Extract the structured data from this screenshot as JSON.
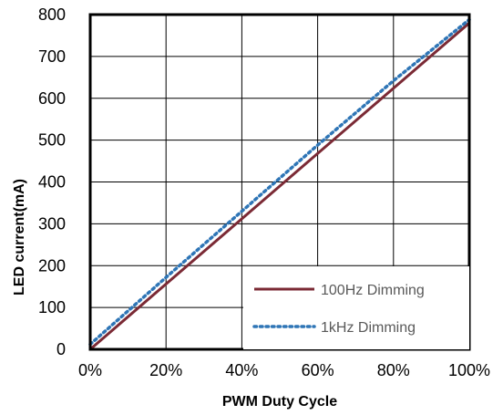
{
  "chart_data": {
    "type": "line",
    "title": "",
    "xlabel": "PWM Duty Cycle",
    "ylabel": "LED current(mA)",
    "xlim": [
      0,
      100
    ],
    "ylim": [
      0,
      800
    ],
    "x_ticks": [
      "0%",
      "20%",
      "40%",
      "60%",
      "80%",
      "100%"
    ],
    "x_tick_values": [
      0,
      20,
      40,
      60,
      80,
      100
    ],
    "y_ticks": [
      "0",
      "100",
      "200",
      "300",
      "400",
      "500",
      "600",
      "700",
      "800"
    ],
    "y_tick_values": [
      0,
      100,
      200,
      300,
      400,
      500,
      600,
      700,
      800
    ],
    "grid": true,
    "legend_position": "bottom-right",
    "series": [
      {
        "name": "100Hz Dimming",
        "style": "solid",
        "color": "#7b2a35",
        "x": [
          0,
          20,
          40,
          60,
          80,
          100
        ],
        "y": [
          0,
          156,
          312,
          468,
          624,
          780
        ]
      },
      {
        "name": "1kHz Dimming",
        "style": "dotted",
        "color": "#2e75b6",
        "x": [
          0,
          20,
          40,
          60,
          80,
          100
        ],
        "y": [
          12,
          172,
          330,
          488,
          642,
          788
        ]
      }
    ]
  }
}
